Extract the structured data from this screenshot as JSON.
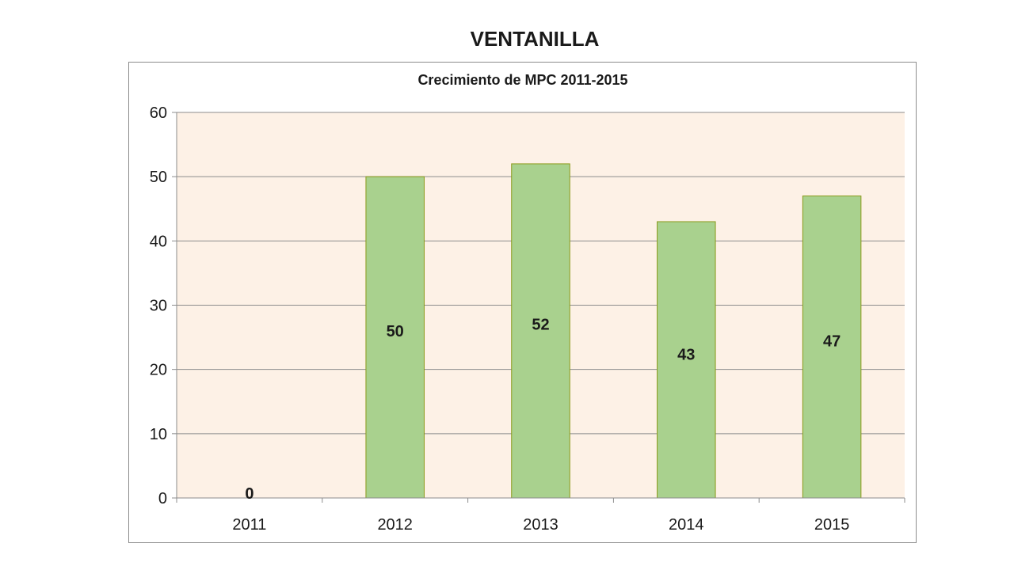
{
  "page": {
    "title": "VENTANILLA"
  },
  "chart_data": {
    "type": "bar",
    "title": "Crecimiento de MPC 2011-2015",
    "xlabel": "",
    "ylabel": "",
    "categories": [
      "2011",
      "2012",
      "2013",
      "2014",
      "2015"
    ],
    "values": [
      0,
      50,
      52,
      43,
      47
    ],
    "data_labels": [
      "0",
      "50",
      "52",
      "43",
      "47"
    ],
    "ylim": [
      0,
      60
    ],
    "yticks": [
      0,
      10,
      20,
      30,
      40,
      50,
      60
    ],
    "ytick_labels": [
      "0",
      "10",
      "20",
      "30",
      "40",
      "50",
      "60"
    ],
    "grid": true,
    "legend": "none",
    "colors": {
      "bar_fill": "#a9d18e",
      "bar_stroke": "#8a9a1a",
      "plot_background": "#fdf1e6",
      "gridline": "#8c8c8c"
    }
  }
}
